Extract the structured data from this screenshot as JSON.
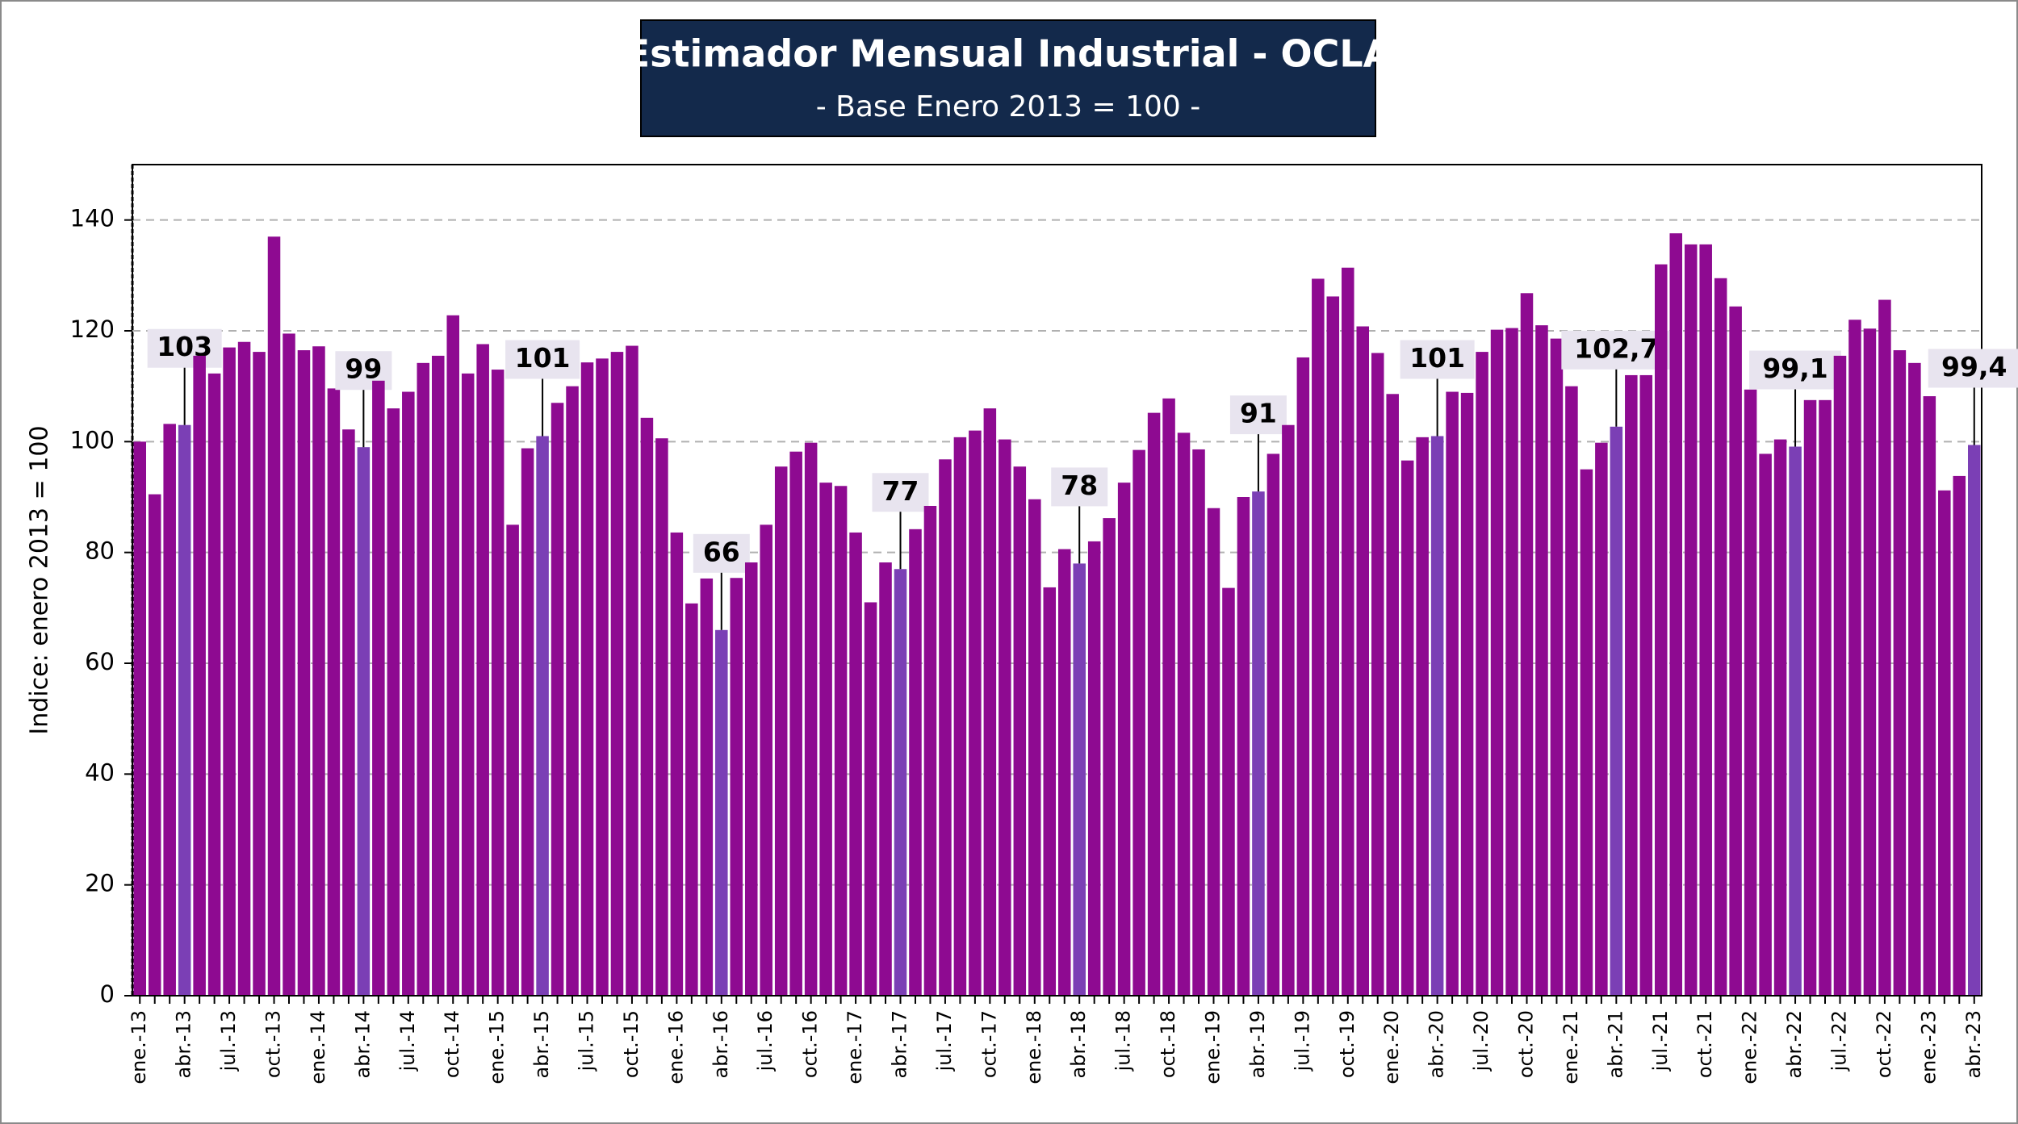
{
  "chart_data": {
    "type": "bar",
    "title": "Estimador Mensual Industrial - OCLA",
    "subtitle": "- Base Enero 2013 = 100 -",
    "y_label": "Indice: enero 2013 = 100",
    "categories": [
      "ene.-13",
      null,
      null,
      "abr.-13",
      null,
      null,
      "jul.-13",
      null,
      null,
      "oct.-13",
      null,
      null,
      "ene.-14",
      null,
      null,
      "abr.-14",
      null,
      null,
      "jul.-14",
      null,
      null,
      "oct.-14",
      null,
      null,
      "ene.-15",
      null,
      null,
      "abr.-15",
      null,
      null,
      "jul.-15",
      null,
      null,
      "oct.-15",
      null,
      null,
      "ene.-16",
      null,
      null,
      "abr.-16",
      null,
      null,
      "jul.-16",
      null,
      null,
      "oct.-16",
      null,
      null,
      "ene.-17",
      null,
      null,
      "abr.-17",
      null,
      null,
      "jul.-17",
      null,
      null,
      "oct.-17",
      null,
      null,
      "ene.-18",
      null,
      null,
      "abr.-18",
      null,
      null,
      "jul.-18",
      null,
      null,
      "oct.-18",
      null,
      null,
      "ene.-19",
      null,
      null,
      "abr.-19",
      null,
      null,
      "jul.-19",
      null,
      null,
      "oct.-19",
      null,
      null,
      "ene.-20",
      null,
      null,
      "abr.-20",
      null,
      null,
      "jul.-20",
      null,
      null,
      "oct.-20",
      null,
      null,
      "ene.-21",
      null,
      null,
      "abr.-21",
      null,
      null,
      "jul.-21",
      null,
      null,
      "oct.-21",
      null,
      null,
      "ene.-22",
      null,
      null,
      "abr.-22",
      null,
      null,
      "jul.-22",
      null,
      null,
      "oct.-22",
      null,
      null,
      "ene.-23",
      null,
      null,
      "abr.-23"
    ],
    "values": [
      100,
      90.5,
      103.2,
      103,
      115.5,
      112.3,
      117,
      118,
      116.2,
      137,
      119.5,
      116.5,
      117.2,
      109.6,
      102.2,
      99,
      111,
      106,
      109,
      114.2,
      115.5,
      122.8,
      112.3,
      117.6,
      113,
      85,
      98.8,
      101,
      107,
      110,
      114.3,
      115,
      116.2,
      117.3,
      104.3,
      100.6,
      83.6,
      70.8,
      75.3,
      66,
      75.4,
      78.2,
      85,
      95.5,
      98.2,
      99.8,
      92.6,
      92,
      83.6,
      71,
      78.2,
      77,
      84.2,
      88.4,
      96.8,
      100.8,
      102,
      106,
      100.4,
      95.5,
      89.6,
      73.7,
      80.6,
      78,
      82,
      86.2,
      92.6,
      98.5,
      105.2,
      107.8,
      101.6,
      98.6,
      88,
      73.6,
      90,
      91,
      97.8,
      103,
      115.2,
      129.4,
      126.2,
      131.4,
      120.8,
      116,
      108.6,
      96.6,
      100.8,
      101,
      109,
      108.8,
      116.2,
      120.2,
      120.5,
      126.8,
      121,
      118.6,
      110,
      95,
      99.8,
      102.7,
      112,
      112,
      132,
      137.6,
      135.6,
      135.6,
      129.5,
      124.4,
      109.4,
      97.8,
      100.4,
      99.1,
      107.5,
      107.5,
      115.5,
      122,
      120.4,
      125.6,
      116.5,
      114.2,
      108.2,
      91.2,
      93.8,
      99.4
    ],
    "value_labels": [
      null,
      null,
      null,
      "103",
      null,
      null,
      null,
      null,
      null,
      null,
      null,
      null,
      null,
      null,
      null,
      "99",
      null,
      null,
      null,
      null,
      null,
      null,
      null,
      null,
      null,
      null,
      null,
      "101",
      null,
      null,
      null,
      null,
      null,
      null,
      null,
      null,
      null,
      null,
      null,
      "66",
      null,
      null,
      null,
      null,
      null,
      null,
      null,
      null,
      null,
      null,
      null,
      "77",
      null,
      null,
      null,
      null,
      null,
      null,
      null,
      null,
      null,
      null,
      null,
      "78",
      null,
      null,
      null,
      null,
      null,
      null,
      null,
      null,
      null,
      null,
      null,
      "91",
      null,
      null,
      null,
      null,
      null,
      null,
      null,
      null,
      null,
      null,
      null,
      "101",
      null,
      null,
      null,
      null,
      null,
      null,
      null,
      null,
      null,
      null,
      null,
      "102,7",
      null,
      null,
      null,
      null,
      null,
      null,
      null,
      null,
      null,
      null,
      null,
      "99,1",
      null,
      null,
      null,
      null,
      null,
      null,
      null,
      null,
      null,
      null,
      null,
      "99,4"
    ],
    "color": "#8e0a91",
    "highlight_color": "#7b3fb5",
    "ylim": [
      0,
      150
    ],
    "yticks": [
      0,
      20,
      40,
      60,
      80,
      100,
      120,
      140
    ],
    "grid": true
  }
}
